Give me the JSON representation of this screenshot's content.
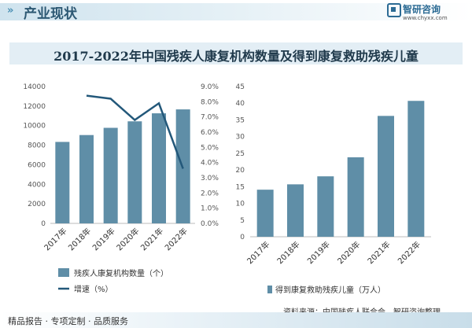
{
  "header": {
    "title": "产业现状",
    "chevron": "»"
  },
  "logo": {
    "name": "智研咨询",
    "url": "www.chyxx.com"
  },
  "main_title": "2017-2022年中国残疾人康复机构数量及得到康复救助残疾儿童",
  "chart_data": [
    {
      "type": "bar+line",
      "categories": [
        "2017年",
        "2018年",
        "2019年",
        "2020年",
        "2021年",
        "2022年"
      ],
      "series": [
        {
          "name": "残疾人康复机构数量（个）",
          "type": "bar",
          "axis": "left",
          "values": [
            8334,
            9036,
            9775,
            10440,
            11260,
            11661
          ]
        },
        {
          "name": "增速（%）",
          "type": "line",
          "axis": "right",
          "values": [
            null,
            8.4,
            8.2,
            6.8,
            7.9,
            3.6
          ]
        }
      ],
      "ylim_left": [
        0,
        14000
      ],
      "yticks_left": [
        "0",
        "2000",
        "4000",
        "6000",
        "8000",
        "10000",
        "12000",
        "14000"
      ],
      "ylim_right": [
        0,
        9
      ],
      "yticks_right": [
        "0.0%",
        "1.0%",
        "2.0%",
        "3.0%",
        "4.0%",
        "5.0%",
        "6.0%",
        "7.0%",
        "8.0%",
        "9.0%"
      ],
      "colors": {
        "bar": "#5f8ea7",
        "line": "#23587a"
      }
    },
    {
      "type": "bar",
      "categories": [
        "2017年",
        "2018年",
        "2019年",
        "2020年",
        "2021年",
        "2022年"
      ],
      "series": [
        {
          "name": "得到康复救助残疾儿童（万人）",
          "values": [
            14.1,
            15.7,
            18.1,
            23.8,
            36.2,
            40.7
          ]
        }
      ],
      "ylim": [
        0,
        45
      ],
      "yticks": [
        "0",
        "5",
        "10",
        "15",
        "20",
        "25",
        "30",
        "35",
        "40",
        "45"
      ],
      "colors": {
        "bar": "#5f8ea7"
      }
    }
  ],
  "footer": {
    "left": "精品报告 · 专项定制 · 品质服务"
  },
  "source": "资料来源：中国残疾人联合会、智研咨询整理"
}
